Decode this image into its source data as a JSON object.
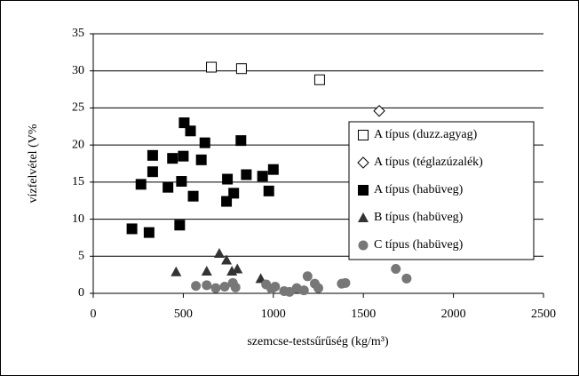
{
  "chart_data": {
    "type": "scatter",
    "xlabel": "szemcse-testsűrűség (kg/m³)",
    "ylabel": "vízfelvétel (V%",
    "xlim": [
      0,
      2500
    ],
    "xticks": [
      0,
      500,
      1000,
      1500,
      2000,
      2500
    ],
    "ylim": [
      0,
      35
    ],
    "yticks": [
      0,
      5,
      10,
      15,
      20,
      25,
      30,
      35
    ],
    "grid": true,
    "legend": "right",
    "series": [
      {
        "name": "A típus (duzz.agyag)",
        "marker": "square-open",
        "color": "#000000",
        "x": [
          656,
          823,
          1257
        ],
        "values": [
          30.5,
          30.3,
          28.8
        ]
      },
      {
        "name": "A típus (téglazúzalék)",
        "marker": "diamond-open",
        "color": "#000000",
        "x": [
          1588
        ],
        "values": [
          24.6
        ]
      },
      {
        "name": "A típus (habüveg)",
        "marker": "square",
        "color": "#000000",
        "x": [
          215,
          310,
          265,
          330,
          330,
          415,
          440,
          480,
          490,
          500,
          505,
          540,
          555,
          600,
          620,
          740,
          745,
          780,
          820,
          850,
          940,
          975,
          1000
        ],
        "values": [
          8.7,
          8.2,
          14.7,
          16.4,
          18.6,
          14.3,
          18.2,
          9.2,
          15.1,
          18.5,
          23.0,
          21.9,
          13.1,
          18.0,
          20.3,
          12.4,
          15.4,
          13.5,
          20.6,
          16.0,
          15.8,
          13.8,
          16.7
        ]
      },
      {
        "name": "B típus (habüveg)",
        "marker": "triangle",
        "color": "#333333",
        "x": [
          460,
          630,
          700,
          740,
          770,
          800,
          930
        ],
        "values": [
          2.9,
          3.0,
          5.4,
          4.5,
          3.0,
          3.3,
          2.0
        ]
      },
      {
        "name": "C típus (habüveg)",
        "marker": "circle",
        "color": "#777777",
        "x": [
          570,
          630,
          680,
          730,
          775,
          790,
          960,
          990,
          1010,
          1060,
          1090,
          1130,
          1170,
          1190,
          1230,
          1250,
          1380,
          1400,
          1680,
          1740
        ],
        "values": [
          1.0,
          1.1,
          0.7,
          0.9,
          1.4,
          0.8,
          1.2,
          0.6,
          0.9,
          0.3,
          0.2,
          0.7,
          0.4,
          2.3,
          1.3,
          0.7,
          1.3,
          1.4,
          3.3,
          2.0
        ]
      }
    ]
  }
}
